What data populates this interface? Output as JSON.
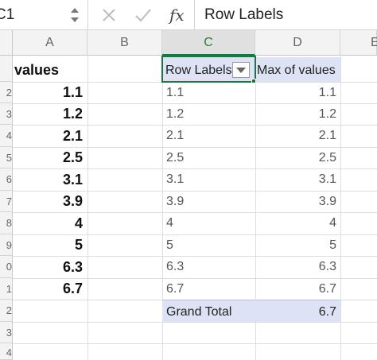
{
  "name_box": {
    "value": "C1"
  },
  "formula_bar": {
    "fx_label": "fx",
    "content": "Row Labels"
  },
  "columns": [
    "A",
    "B",
    "C",
    "D",
    "E"
  ],
  "row_numbers": [
    "",
    "2",
    "3",
    "4",
    "5",
    "6",
    "7",
    "8",
    "9",
    "0",
    "1",
    "2",
    "3",
    "4"
  ],
  "source": {
    "header": "values",
    "values": [
      "1.1",
      "1.2",
      "2.1",
      "2.5",
      "3.1",
      "3.9",
      "4",
      "5",
      "6.3",
      "6.7"
    ]
  },
  "pivot": {
    "row_labels_header": "Row Labels",
    "values_header": "Max of values",
    "rows": [
      {
        "label": "1.1",
        "value": "1.1"
      },
      {
        "label": "1.2",
        "value": "1.2"
      },
      {
        "label": "2.1",
        "value": "2.1"
      },
      {
        "label": "2.5",
        "value": "2.5"
      },
      {
        "label": "3.1",
        "value": "3.1"
      },
      {
        "label": "3.9",
        "value": "3.9"
      },
      {
        "label": "4",
        "value": "4"
      },
      {
        "label": "5",
        "value": "5"
      },
      {
        "label": "6.3",
        "value": "6.3"
      },
      {
        "label": "6.7",
        "value": "6.7"
      }
    ],
    "grand_total_label": "Grand Total",
    "grand_total_value": "6.7"
  },
  "colors": {
    "selection": "#217346",
    "pivot_header": "#dde3f4"
  },
  "icons": [
    "spinner-icon",
    "cancel-icon",
    "enter-icon",
    "fx-icon",
    "filter-dropdown-icon"
  ]
}
